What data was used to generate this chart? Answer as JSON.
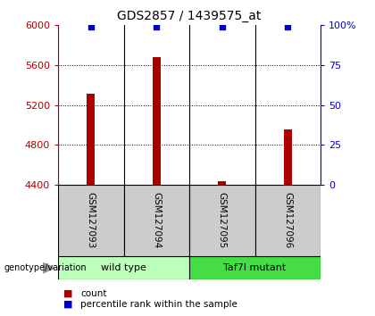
{
  "title": "GDS2857 / 1439575_at",
  "samples": [
    "GSM127093",
    "GSM127094",
    "GSM127095",
    "GSM127096"
  ],
  "bar_values": [
    5310,
    5680,
    4435,
    4960
  ],
  "percentile_values": [
    99,
    99,
    99,
    99
  ],
  "bar_color": "#aa0000",
  "dot_color": "#0000cc",
  "ylim_left": [
    4400,
    6000
  ],
  "ylim_right": [
    0,
    100
  ],
  "yticks_left": [
    4400,
    4800,
    5200,
    5600,
    6000
  ],
  "yticks_right": [
    0,
    25,
    50,
    75,
    100
  ],
  "ytick_labels_right": [
    "0",
    "25",
    "50",
    "75",
    "100%"
  ],
  "grid_values": [
    4800,
    5200,
    5600
  ],
  "group1_label": "wild type",
  "group2_label": "Taf7l mutant",
  "group1_color": "#bbffbb",
  "group2_color": "#44dd44",
  "group_label_prefix": "genotype/variation",
  "legend_count_label": "count",
  "legend_percentile_label": "percentile rank within the sample",
  "background_color": "#ffffff",
  "plot_bg_color": "#ffffff",
  "sample_box_color": "#cccccc",
  "bar_width": 0.12
}
